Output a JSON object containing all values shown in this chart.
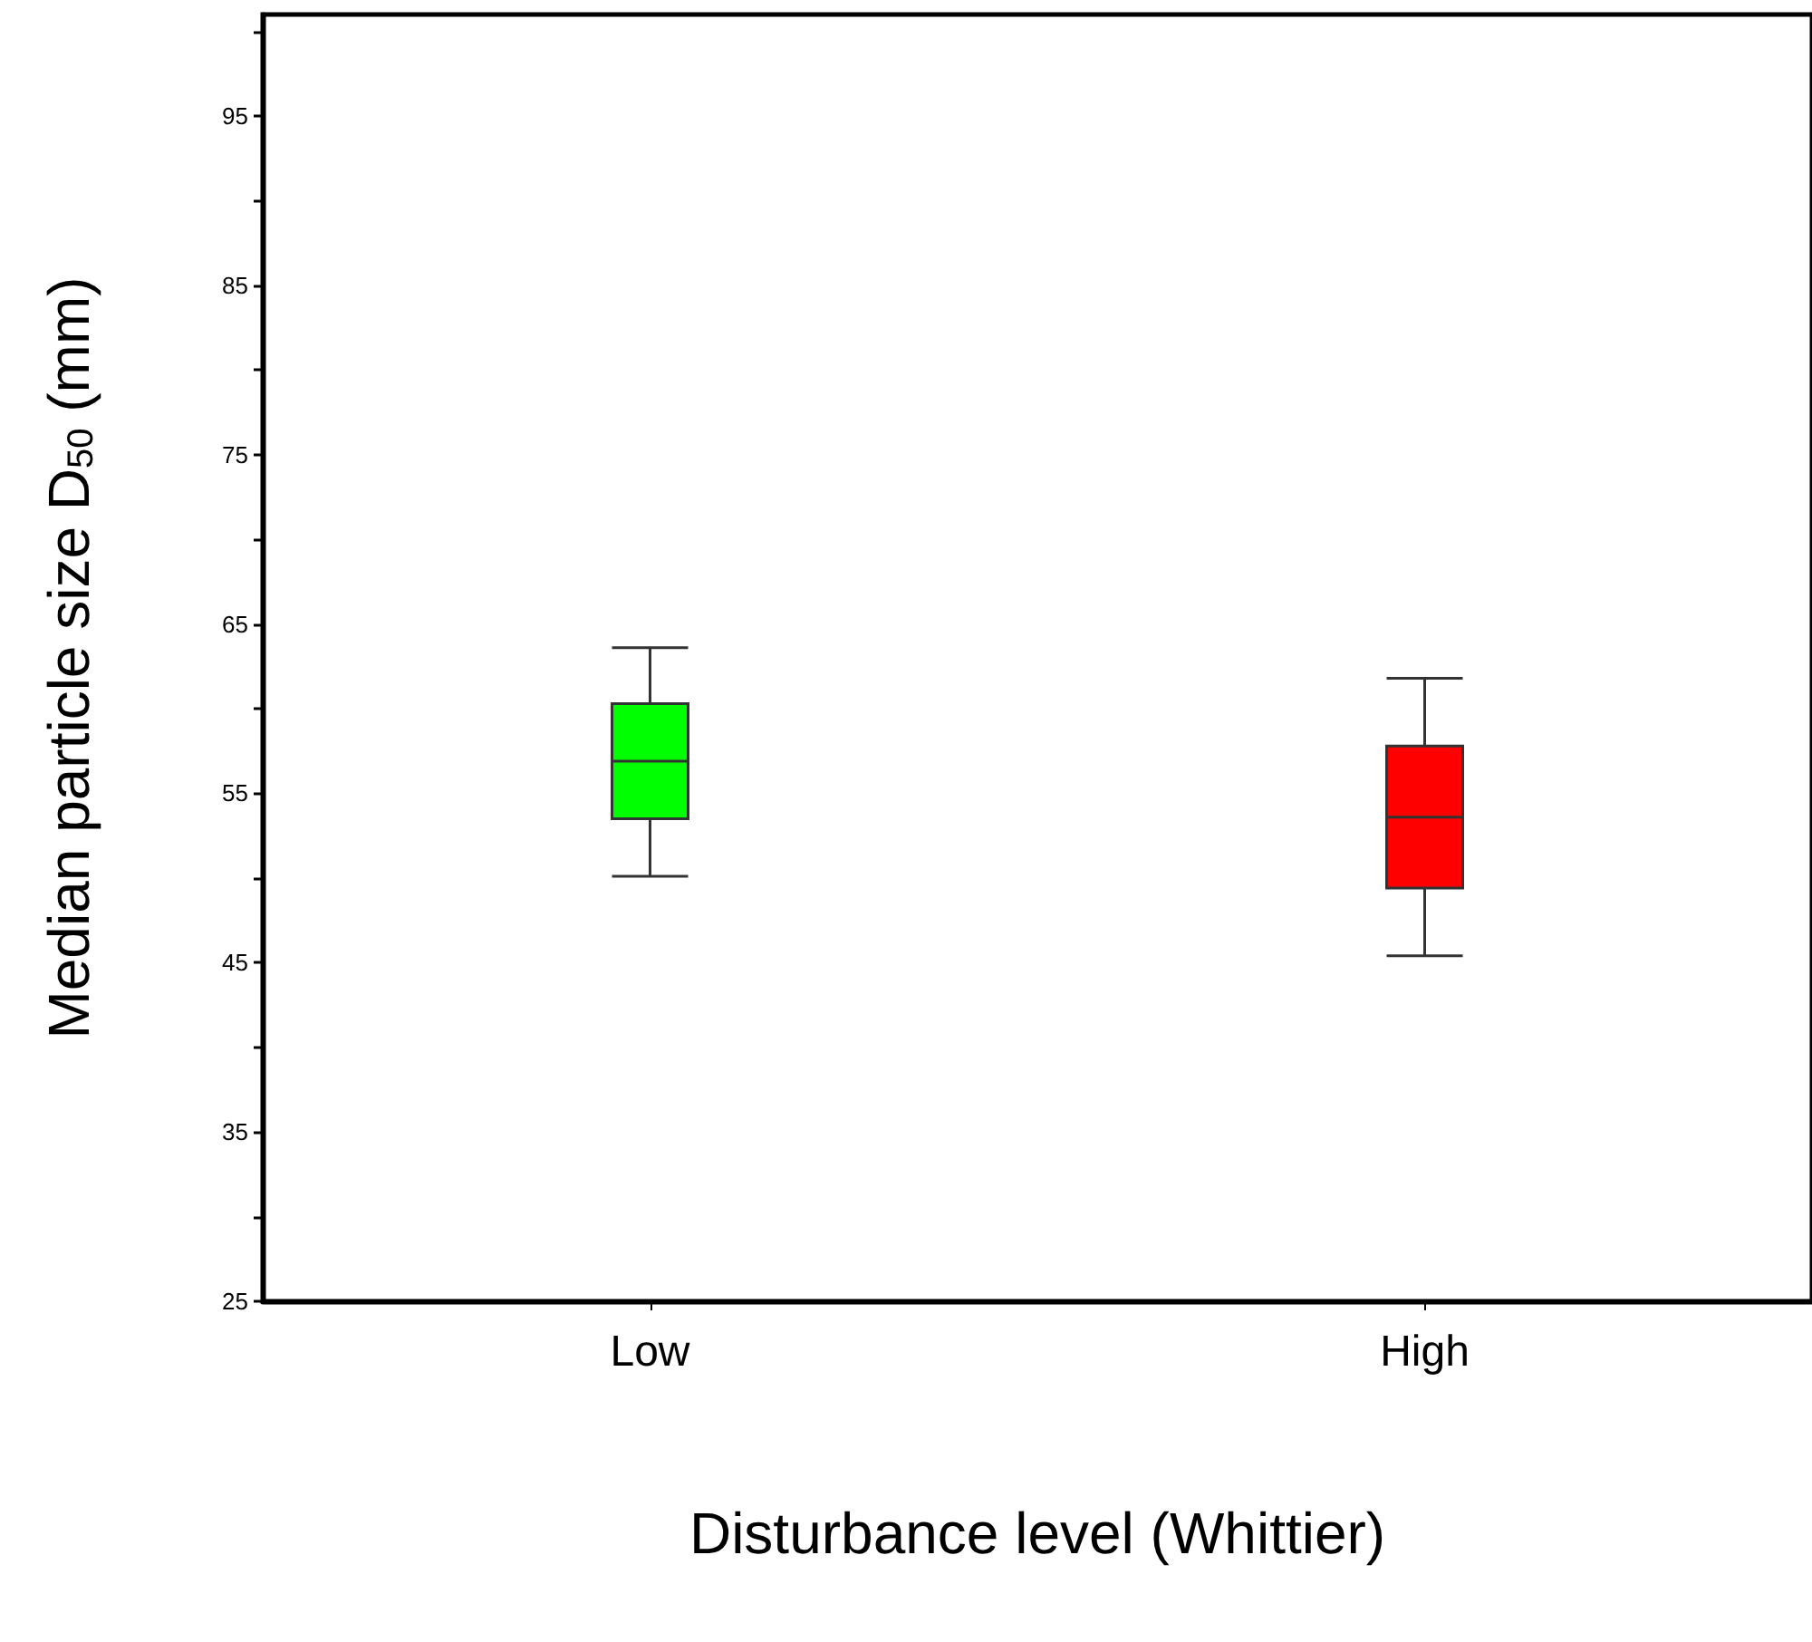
{
  "chart_data": {
    "type": "box",
    "xlabel": "Disturbance level (Whittier)",
    "ylabel": "Median particle size D$_{50}$ (mm)",
    "categories": [
      "Low",
      "High"
    ],
    "colors": [
      "#00ff00",
      "#ff0000"
    ],
    "boxes": [
      {
        "low": 50.1,
        "q1": 53.5,
        "median": 56.9,
        "q3": 60.3,
        "high": 63.6
      },
      {
        "low": 45.4,
        "q1": 49.4,
        "median": 53.6,
        "q3": 57.8,
        "high": 61.8
      }
    ],
    "ylim": [
      25,
      101
    ],
    "yticks": [
      25,
      {
        "value": 30,
        "label": null
      },
      35,
      {
        "value": 40,
        "label": null
      },
      45,
      {
        "value": 50,
        "label": null
      },
      55,
      {
        "value": 60,
        "label": null
      },
      65,
      {
        "value": 70,
        "label": null
      },
      75,
      {
        "value": 80,
        "label": null
      },
      85,
      {
        "value": 90,
        "label": null
      },
      95,
      {
        "value": 100,
        "label": null
      }
    ]
  }
}
